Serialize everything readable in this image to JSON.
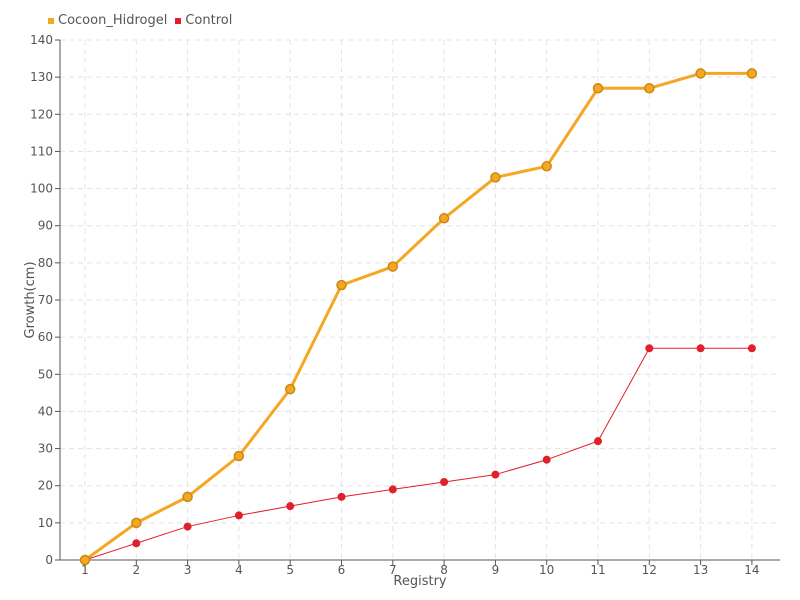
{
  "chart_data": {
    "type": "line",
    "title": "",
    "xlabel": "Registry",
    "ylabel": "Growth(cm)",
    "categories": [
      "1",
      "2",
      "3",
      "4",
      "5",
      "6",
      "7",
      "8",
      "9",
      "10",
      "11",
      "12",
      "13",
      "14"
    ],
    "ylim": [
      0,
      140
    ],
    "yticks": [
      0,
      10,
      20,
      30,
      40,
      50,
      60,
      70,
      80,
      90,
      100,
      110,
      120,
      130,
      140
    ],
    "grid": true,
    "legend_position": "top-left",
    "series": [
      {
        "name": "Cocoon_Hidrogel",
        "color": "#f5a623",
        "values": [
          0,
          10,
          17,
          28,
          46,
          74,
          79,
          92,
          103,
          106,
          127,
          127,
          131,
          131
        ]
      },
      {
        "name": "Control",
        "color": "#e0202a",
        "values": [
          0,
          4.5,
          9,
          12,
          14.5,
          17,
          19,
          21,
          23,
          27,
          32,
          57,
          57,
          57
        ]
      }
    ]
  }
}
